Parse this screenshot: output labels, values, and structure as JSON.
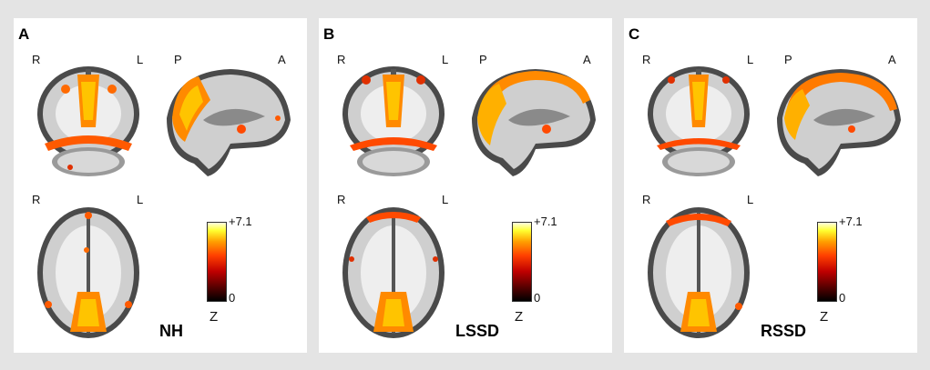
{
  "panels": [
    {
      "letter": "A",
      "group": "NH",
      "coronal": {
        "left": "R",
        "right": "L"
      },
      "sagittal": {
        "left": "P",
        "right": "A"
      },
      "axial": {
        "left": "R",
        "right": "L"
      },
      "colorbar": {
        "max": "+7.1",
        "min": "0",
        "unit": "Z"
      }
    },
    {
      "letter": "B",
      "group": "LSSD",
      "coronal": {
        "left": "R",
        "right": "L"
      },
      "sagittal": {
        "left": "P",
        "right": "A"
      },
      "axial": {
        "left": "R",
        "right": "L"
      },
      "colorbar": {
        "max": "+7.1",
        "min": "0",
        "unit": "Z"
      }
    },
    {
      "letter": "C",
      "group": "RSSD",
      "coronal": {
        "left": "R",
        "right": "L"
      },
      "sagittal": {
        "left": "P",
        "right": "A"
      },
      "axial": {
        "left": "R",
        "right": "L"
      },
      "colorbar": {
        "max": "+7.1",
        "min": "0",
        "unit": "Z"
      }
    }
  ],
  "colors": {
    "background": "#e4e4e4",
    "panel": "#ffffff",
    "activation_low": "#c00000",
    "activation_mid": "#ff6a00",
    "activation_high": "#ffd000"
  }
}
